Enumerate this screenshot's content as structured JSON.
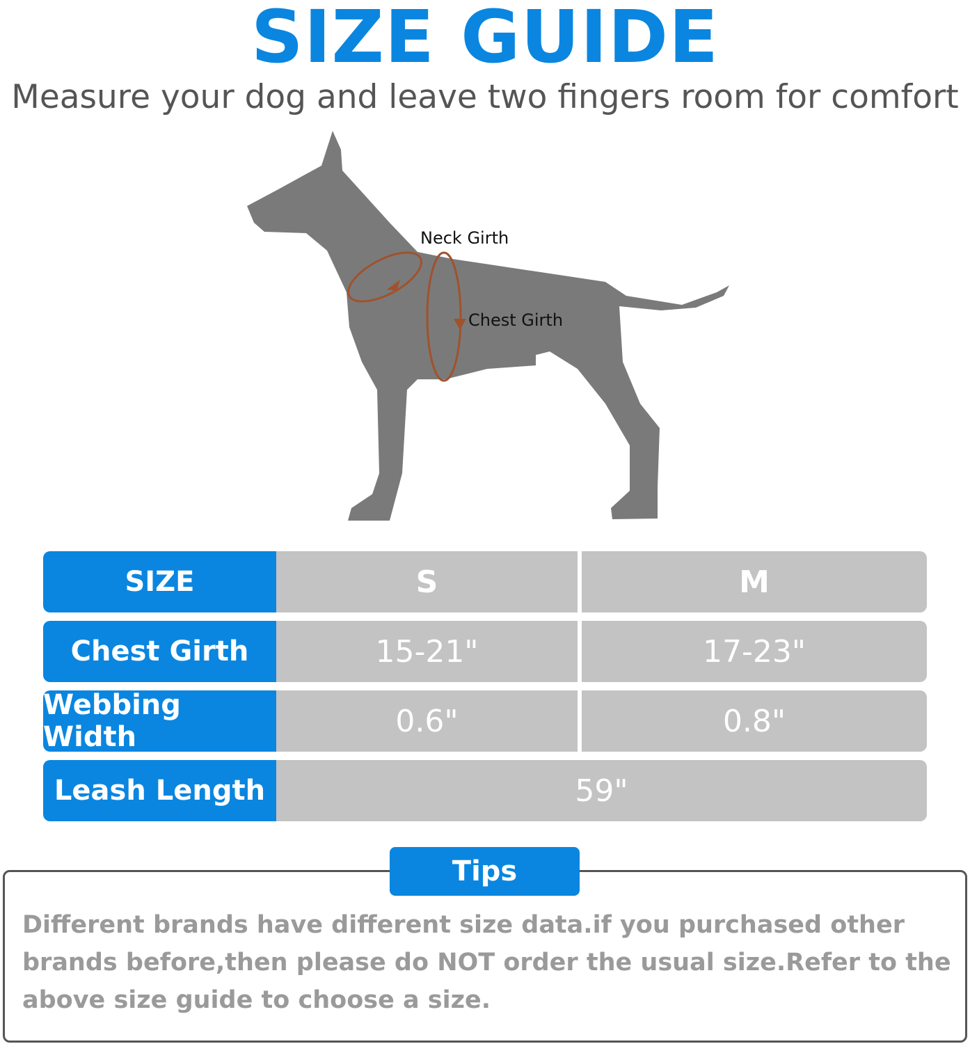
{
  "header": {
    "title": "SIZE GUIDE",
    "subtitle": "Measure your dog and leave two fingers room for comfort"
  },
  "diagram": {
    "neck_label": "Neck Girth",
    "chest_label": "Chest Girth",
    "colors": {
      "dog": "#7a7a7a",
      "measure": "#a0522d"
    }
  },
  "table": {
    "header": {
      "label": "SIZE",
      "s": "S",
      "m": "M"
    },
    "rows": [
      {
        "label": "Chest Girth",
        "s": "15-21\"",
        "m": "17-23\""
      },
      {
        "label": "Webbing Width",
        "s": "0.6\"",
        "m": "0.8\""
      },
      {
        "label": "Leash Length",
        "all": "59\""
      }
    ],
    "colors": {
      "label_bg": "#0a86e0",
      "cell_bg": "#c4c3c4"
    }
  },
  "tips": {
    "label": "Tips",
    "text": "Different brands have different size data.if you purchased other brands before,then please do NOT order the usual size.Refer to the above size guide to choose a size."
  }
}
